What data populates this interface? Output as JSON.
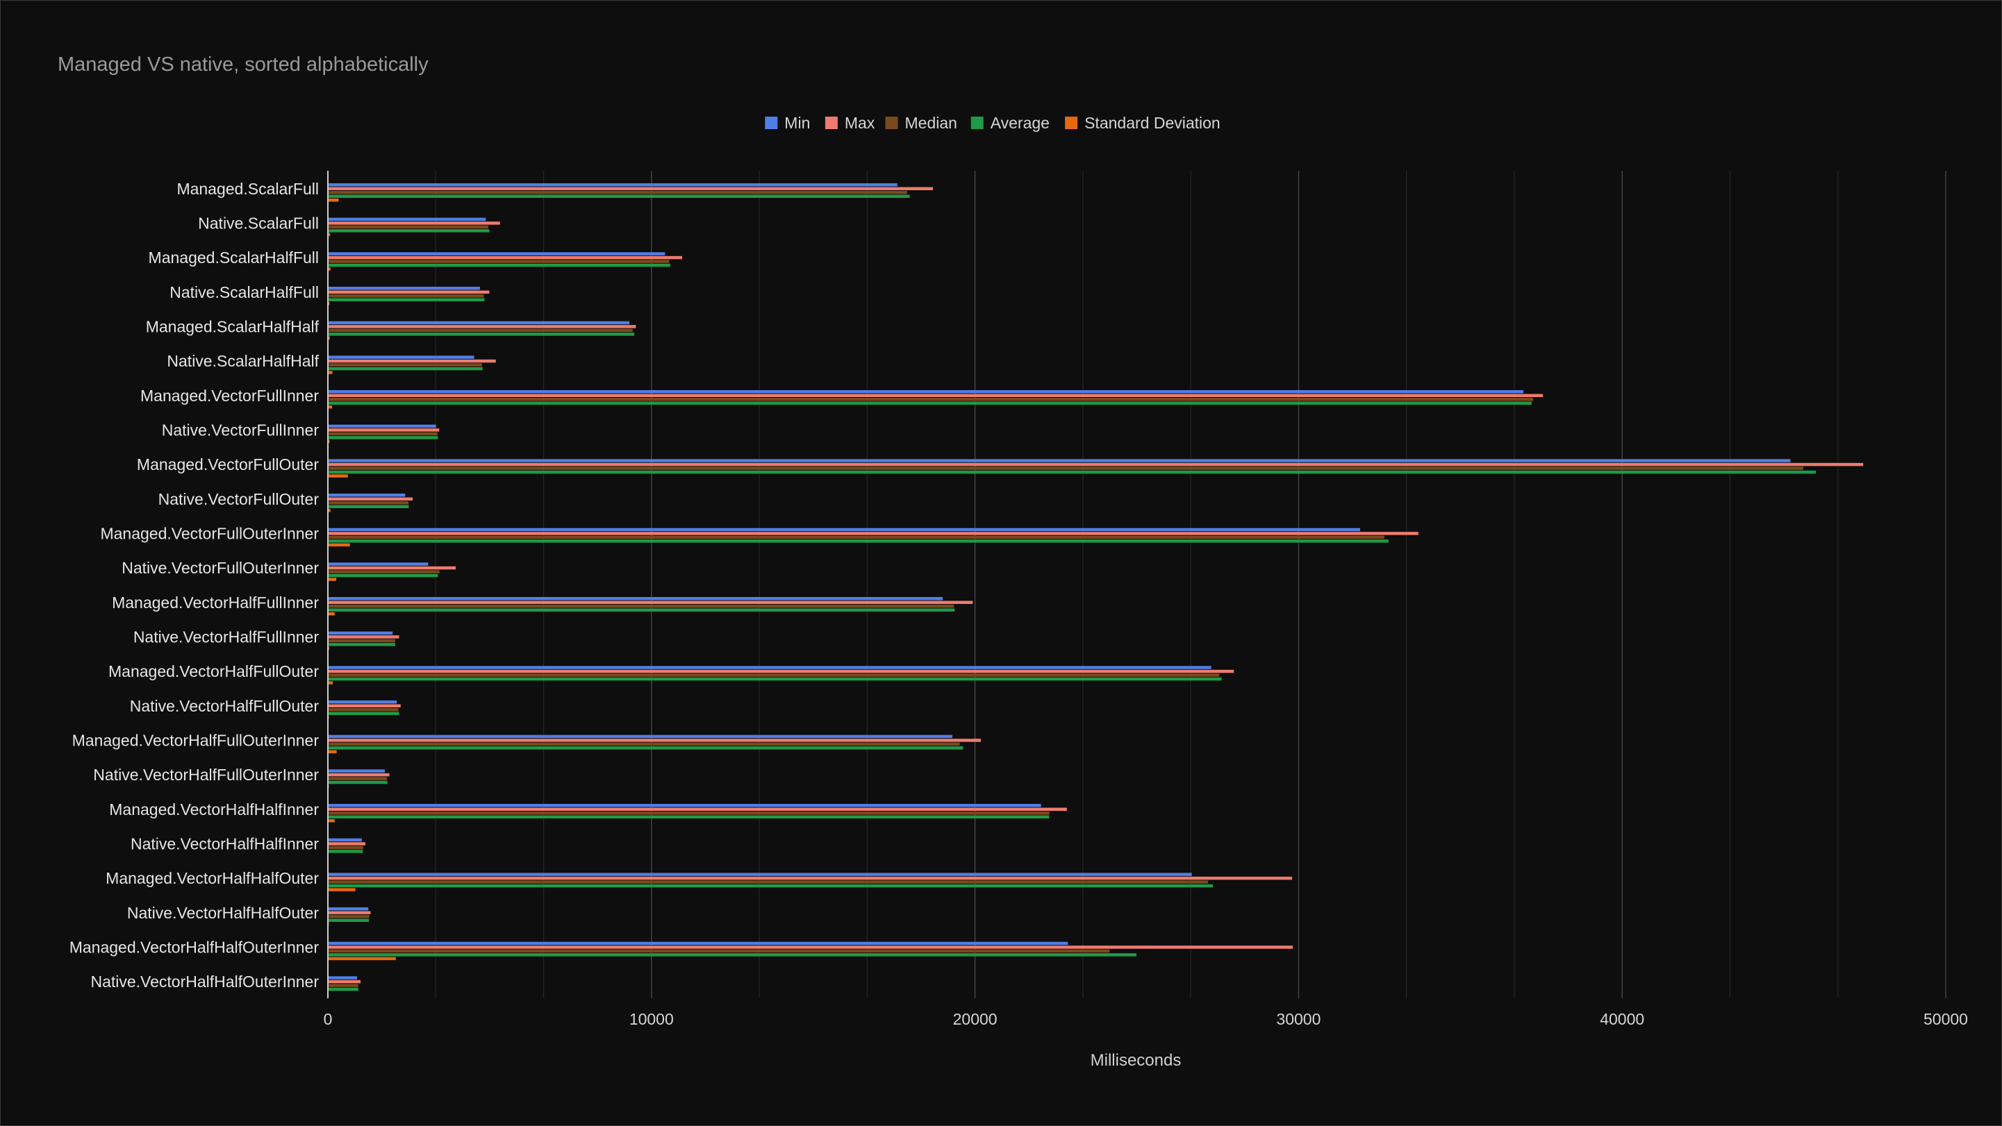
{
  "chart_data": {
    "type": "bar",
    "orientation": "horizontal",
    "title": "Managed VS native, sorted alphabetically",
    "xlabel": "Milliseconds",
    "ylabel": "",
    "xlim": [
      0,
      50000
    ],
    "xticks": [
      0,
      10000,
      20000,
      30000,
      40000,
      50000
    ],
    "grid": true,
    "legend_position": "top",
    "categories": [
      "Managed.ScalarFull",
      "Native.ScalarFull",
      "Managed.ScalarHalfFull",
      "Native.ScalarHalfFull",
      "Managed.ScalarHalfHalf",
      "Native.ScalarHalfHalf",
      "Managed.VectorFullInner",
      "Native.VectorFullInner",
      "Managed.VectorFullOuter",
      "Native.VectorFullOuter",
      "Managed.VectorFullOuterInner",
      "Native.VectorFullOuterInner",
      "Managed.VectorHalfFullInner",
      "Native.VectorHalfFullInner",
      "Managed.VectorHalfFullOuter",
      "Native.VectorHalfFullOuter",
      "Managed.VectorHalfFullOuterInner",
      "Native.VectorHalfFullOuterInner",
      "Managed.VectorHalfHalfInner",
      "Native.VectorHalfHalfInner",
      "Managed.VectorHalfHalfOuter",
      "Native.VectorHalfHalfOuter",
      "Managed.VectorHalfHalfOuterInner",
      "Native.VectorHalfHalfOuterInner"
    ],
    "series": [
      {
        "name": "Min",
        "color": "#4f7fe6",
        "values": [
          17600,
          4880,
          10420,
          4700,
          9320,
          4520,
          36950,
          3340,
          45200,
          2390,
          31900,
          3100,
          19000,
          2000,
          27300,
          2130,
          19300,
          1760,
          22040,
          1050,
          26700,
          1250,
          22870,
          900
        ]
      },
      {
        "name": "Max",
        "color": "#ef7b6f",
        "values": [
          18700,
          5320,
          10950,
          4990,
          9520,
          5190,
          37550,
          3440,
          47450,
          2620,
          33700,
          3950,
          19930,
          2200,
          28000,
          2250,
          20180,
          1900,
          22840,
          1160,
          29800,
          1320,
          29820,
          1010
        ]
      },
      {
        "name": "Median",
        "color": "#7a4a1c",
        "values": [
          17900,
          4960,
          10550,
          4820,
          9420,
          4760,
          37250,
          3390,
          45600,
          2490,
          32650,
          3450,
          19350,
          2080,
          27550,
          2180,
          19530,
          1830,
          22300,
          1090,
          27200,
          1280,
          24160,
          940
        ]
      },
      {
        "name": "Average",
        "color": "#1f9a49",
        "values": [
          17980,
          4990,
          10580,
          4840,
          9470,
          4780,
          37200,
          3400,
          45990,
          2500,
          32780,
          3400,
          19370,
          2080,
          27620,
          2200,
          19630,
          1840,
          22290,
          1080,
          27350,
          1270,
          24990,
          940
        ]
      },
      {
        "name": "Standard Deviation",
        "color": "#e8680f",
        "values": [
          330,
          70,
          80,
          50,
          60,
          140,
          130,
          50,
          620,
          80,
          680,
          260,
          210,
          40,
          150,
          30,
          270,
          30,
          210,
          20,
          850,
          30,
          2100,
          20
        ]
      }
    ]
  }
}
